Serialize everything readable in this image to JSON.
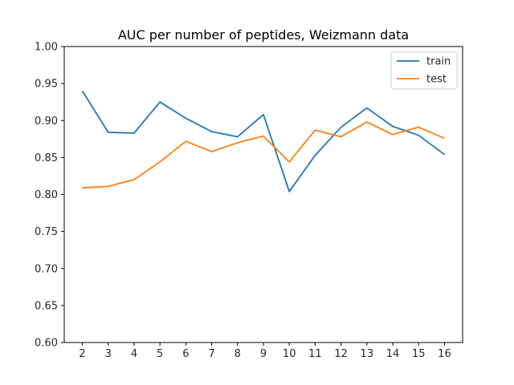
{
  "chart_data": {
    "type": "line",
    "title": "AUC per number of peptides, Weizmann data",
    "xlabel": "",
    "ylabel": "",
    "x": [
      2,
      3,
      4,
      5,
      6,
      7,
      8,
      9,
      10,
      11,
      12,
      13,
      14,
      15,
      16
    ],
    "xlim": [
      1.3,
      16.7
    ],
    "ylim": [
      0.6,
      1.0
    ],
    "xticks": [
      "2",
      "3",
      "4",
      "5",
      "6",
      "7",
      "8",
      "9",
      "10",
      "11",
      "12",
      "13",
      "14",
      "15",
      "16"
    ],
    "yticks": [
      "0.60",
      "0.65",
      "0.70",
      "0.75",
      "0.80",
      "0.85",
      "0.90",
      "0.95",
      "1.00"
    ],
    "grid": false,
    "legend_position": "upper-right",
    "series": [
      {
        "name": "train",
        "color": "#1f77b4",
        "values": [
          0.94,
          0.884,
          0.883,
          0.925,
          0.903,
          0.885,
          0.878,
          0.908,
          0.804,
          0.853,
          0.891,
          0.917,
          0.892,
          0.88,
          0.854
        ]
      },
      {
        "name": "test",
        "color": "#ff7f0e",
        "values": [
          0.809,
          0.811,
          0.82,
          0.844,
          0.872,
          0.858,
          0.87,
          0.879,
          0.844,
          0.887,
          0.878,
          0.898,
          0.881,
          0.891,
          0.876
        ]
      }
    ]
  }
}
